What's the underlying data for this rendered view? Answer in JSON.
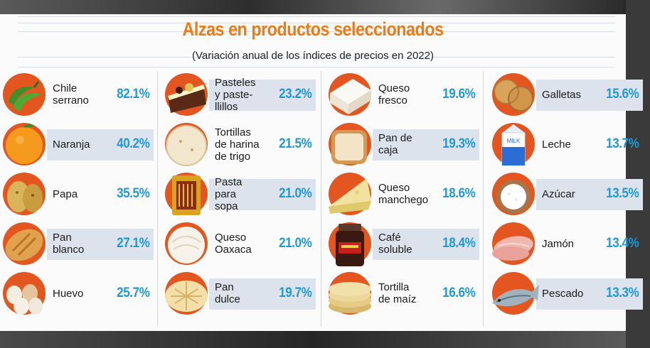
{
  "header": {
    "title": "Alzas en productos seleccionados",
    "subtitle": "(Variación anual de los índices de precios en 2022)"
  },
  "colors": {
    "accent": "#f07a12",
    "value": "#1e9ad6",
    "circle": "#e3561f",
    "band": "#dde3ec"
  },
  "columns": [
    [
      {
        "name": "Chile\nserrano",
        "value": "82.1%",
        "icon": "chili-icon"
      },
      {
        "name": "Naranja",
        "value": "40.2%",
        "icon": "orange-icon"
      },
      {
        "name": "Papa",
        "value": "35.5%",
        "icon": "potato-icon"
      },
      {
        "name": "Pan\nblanco",
        "value": "27.1%",
        "icon": "bread-roll-icon"
      },
      {
        "name": "Huevo",
        "value": "25.7%",
        "icon": "egg-icon"
      }
    ],
    [
      {
        "name": "Pasteles\ny paste-\nllillos",
        "value": "23.2%",
        "icon": "cake-icon"
      },
      {
        "name": "Tortillas\nde harina\nde trigo",
        "value": "21.5%",
        "icon": "flour-tortilla-icon"
      },
      {
        "name": "Pasta\npara\nsopa",
        "value": "21.0%",
        "icon": "pasta-icon"
      },
      {
        "name": "Queso\nOaxaca",
        "value": "21.0%",
        "icon": "oaxaca-cheese-icon"
      },
      {
        "name": "Pan\ndulce",
        "value": "19.7%",
        "icon": "concha-icon"
      }
    ],
    [
      {
        "name": "Queso\nfresco",
        "value": "19.6%",
        "icon": "fresh-cheese-icon"
      },
      {
        "name": "Pan de\ncaja",
        "value": "19.3%",
        "icon": "sliced-bread-icon"
      },
      {
        "name": "Queso\nmanchego",
        "value": "18.6%",
        "icon": "manchego-cheese-icon"
      },
      {
        "name": "Café\nsoluble",
        "value": "18.4%",
        "icon": "coffee-jar-icon"
      },
      {
        "name": "Tortilla\nde maíz",
        "value": "16.6%",
        "icon": "corn-tortilla-icon"
      }
    ],
    [
      {
        "name": "Galletas",
        "value": "15.6%",
        "icon": "cookie-icon"
      },
      {
        "name": "Leche",
        "value": "13.7%",
        "icon": "milk-carton-icon"
      },
      {
        "name": "Azúcar",
        "value": "13.5%",
        "icon": "sugar-icon"
      },
      {
        "name": "Jamón",
        "value": "13.4%",
        "icon": "ham-icon"
      },
      {
        "name": "Pescado",
        "value": "13.3%",
        "icon": "fish-icon"
      }
    ]
  ]
}
